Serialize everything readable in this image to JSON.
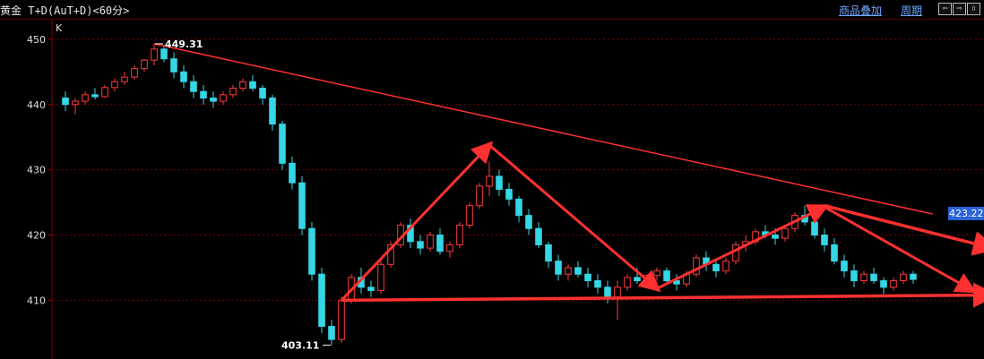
{
  "header": {
    "title": "黄金 T+D(AuT+D)<60分>",
    "overlay_label": "商品叠加",
    "period_label": "周期",
    "nav_left": "⇦",
    "nav_right": "⇨",
    "nav_expand": "⇳"
  },
  "chart_data": {
    "type": "candlestick",
    "axis_marker": "K",
    "y_ticks": [
      "450",
      "440",
      "430",
      "420",
      "410"
    ],
    "ylim": [
      401,
      453
    ],
    "grid": true,
    "colors": {
      "up": "#ff3b3b",
      "down": "#35d6e6",
      "grid": "#7a0000",
      "trend": "#ff3030"
    },
    "annotations": {
      "high": "449.31",
      "low": "403.11"
    },
    "current_price": "423.22",
    "ohlc": [
      [
        441,
        442,
        439,
        440
      ],
      [
        440,
        441,
        438.5,
        440.5
      ],
      [
        440.5,
        442,
        440,
        441.5
      ],
      [
        441.5,
        442.5,
        440.8,
        441.2
      ],
      [
        441.2,
        443,
        441,
        442.6
      ],
      [
        442.6,
        444,
        442,
        443.5
      ],
      [
        443.5,
        445,
        443,
        444.2
      ],
      [
        444.2,
        446,
        443.8,
        445.5
      ],
      [
        445.5,
        447,
        445,
        446.8
      ],
      [
        446.8,
        449.31,
        446,
        448.5
      ],
      [
        448.5,
        449.2,
        446.5,
        447
      ],
      [
        447,
        448,
        444,
        445
      ],
      [
        445,
        446,
        442.5,
        443.5
      ],
      [
        443.5,
        444.5,
        441,
        442
      ],
      [
        442,
        443,
        440,
        441
      ],
      [
        441,
        442,
        439.5,
        440.5
      ],
      [
        440.5,
        442,
        440,
        441.5
      ],
      [
        441.5,
        443,
        441,
        442.5
      ],
      [
        442.5,
        444,
        442,
        443.5
      ],
      [
        443.5,
        444.5,
        442,
        442.5
      ],
      [
        442.5,
        443,
        440,
        441
      ],
      [
        441,
        441.5,
        436,
        437
      ],
      [
        437,
        437.5,
        430,
        431
      ],
      [
        431,
        432,
        427,
        428
      ],
      [
        428,
        429,
        420,
        421
      ],
      [
        421,
        422,
        413,
        414
      ],
      [
        414,
        415,
        405,
        406
      ],
      [
        406,
        407,
        403.11,
        404
      ],
      [
        404,
        410.5,
        403.5,
        410
      ],
      [
        410,
        414,
        409.5,
        413.5
      ],
      [
        413.5,
        415,
        411,
        412
      ],
      [
        412,
        413,
        410.5,
        411.5
      ],
      [
        411.5,
        416,
        411,
        415.5
      ],
      [
        415.5,
        419,
        415,
        418.5
      ],
      [
        418.5,
        422,
        418,
        421.5
      ],
      [
        421.5,
        422.5,
        418,
        419
      ],
      [
        419,
        420,
        417,
        418
      ],
      [
        418,
        420.5,
        417.5,
        420
      ],
      [
        420,
        421,
        417,
        417.5
      ],
      [
        417.5,
        419,
        416.5,
        418.5
      ],
      [
        418.5,
        422,
        418,
        421.5
      ],
      [
        421.5,
        425,
        421,
        424.5
      ],
      [
        424.5,
        428,
        424,
        427.5
      ],
      [
        427.5,
        431.2,
        426,
        429
      ],
      [
        429,
        430,
        426,
        427
      ],
      [
        427,
        428,
        424.5,
        425.5
      ],
      [
        425.5,
        426,
        422,
        423
      ],
      [
        423,
        424,
        420,
        421
      ],
      [
        421,
        422,
        418,
        418.5
      ],
      [
        418.5,
        419,
        415,
        416
      ],
      [
        416,
        417,
        413,
        414
      ],
      [
        414,
        415.5,
        413,
        415
      ],
      [
        415,
        416,
        413.5,
        414
      ],
      [
        414,
        415,
        412,
        413
      ],
      [
        413,
        414,
        411,
        412
      ],
      [
        412,
        413,
        409.5,
        410.5
      ],
      [
        410.5,
        413,
        407,
        412
      ],
      [
        412,
        414,
        411.5,
        413.5
      ],
      [
        413.5,
        415,
        412.5,
        413
      ],
      [
        413,
        414,
        412,
        413.8
      ],
      [
        413.8,
        415,
        413,
        414.5
      ],
      [
        414.5,
        415,
        412.5,
        413
      ],
      [
        413,
        414,
        411.5,
        412.5
      ],
      [
        412.5,
        414.5,
        412,
        414
      ],
      [
        414,
        417,
        413.5,
        416.5
      ],
      [
        416.5,
        417.5,
        414.5,
        415.5
      ],
      [
        415.5,
        416,
        413.5,
        414.5
      ],
      [
        414.5,
        416.5,
        414,
        416
      ],
      [
        416,
        419,
        415.5,
        418.5
      ],
      [
        418.5,
        420,
        417.5,
        419
      ],
      [
        419,
        421,
        418.5,
        420.5
      ],
      [
        420.5,
        421.5,
        419.5,
        420
      ],
      [
        420,
        421,
        418.5,
        419.5
      ],
      [
        419.5,
        421.5,
        419,
        421
      ],
      [
        421,
        423.5,
        420.5,
        423
      ],
      [
        423,
        424.5,
        421.5,
        422
      ],
      [
        422,
        423,
        419.5,
        420
      ],
      [
        420,
        421,
        417.5,
        418.5
      ],
      [
        418.5,
        419.5,
        415.5,
        416
      ],
      [
        416,
        417,
        413.5,
        414.5
      ],
      [
        414.5,
        415.5,
        412,
        413
      ],
      [
        413,
        414.5,
        412.5,
        414
      ],
      [
        414,
        415,
        412.5,
        413
      ],
      [
        413,
        413.5,
        411,
        412
      ],
      [
        412,
        413.5,
        411.5,
        413
      ],
      [
        413,
        414.5,
        412.5,
        414
      ],
      [
        414,
        414.5,
        412.5,
        413.2
      ]
    ],
    "trendlines": {
      "upper_resistance": [
        [
          9,
          449.31
        ],
        [
          88,
          423.22
        ]
      ],
      "support": [
        [
          28,
          410
        ],
        [
          94,
          410.8
        ]
      ],
      "swing_arrows": [
        [
          [
            28,
            410
          ],
          [
            43,
            433.8
          ]
        ],
        [
          [
            43,
            433.8
          ],
          [
            60,
            411.8
          ]
        ],
        [
          [
            60,
            411.8
          ],
          [
            77,
            424.3
          ]
        ],
        [
          [
            77,
            424.3
          ],
          [
            92,
            411.5
          ]
        ]
      ],
      "upper_arrow_extension": [
        [
          77,
          424.5
        ],
        [
          94,
          418
        ]
      ]
    }
  }
}
